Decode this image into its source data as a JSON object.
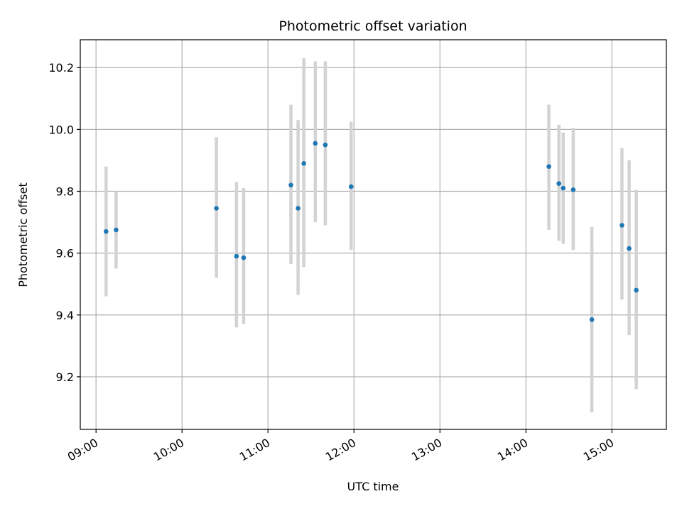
{
  "chart_data": {
    "type": "scatter",
    "title": "Photometric offset variation",
    "xlabel": "UTC time",
    "ylabel": "Photometric offset",
    "xlim": [
      "08:49",
      "15:38"
    ],
    "ylim": [
      9.03,
      10.29
    ],
    "x_ticks": [
      "09:00",
      "10:00",
      "11:00",
      "12:00",
      "13:00",
      "14:00",
      "15:00"
    ],
    "y_ticks": [
      9.2,
      9.4,
      9.6,
      9.8,
      10.0,
      10.2
    ],
    "grid": true,
    "colors": {
      "point": "#1f77b4",
      "errorbar": "#d3d3d3",
      "grid": "#b0b0b0"
    },
    "series": [
      {
        "points": [
          {
            "x": "09:07",
            "y": 9.67,
            "ylow": 9.46,
            "yhigh": 9.88
          },
          {
            "x": "09:14",
            "y": 9.675,
            "ylow": 9.55,
            "yhigh": 9.8
          },
          {
            "x": "10:24",
            "y": 9.745,
            "ylow": 9.52,
            "yhigh": 9.975
          },
          {
            "x": "10:38",
            "y": 9.59,
            "ylow": 9.36,
            "yhigh": 9.83
          },
          {
            "x": "10:43",
            "y": 9.585,
            "ylow": 9.37,
            "yhigh": 9.81
          },
          {
            "x": "11:16",
            "y": 9.82,
            "ylow": 9.565,
            "yhigh": 10.08
          },
          {
            "x": "11:21",
            "y": 9.745,
            "ylow": 9.465,
            "yhigh": 10.03
          },
          {
            "x": "11:25",
            "y": 9.89,
            "ylow": 9.555,
            "yhigh": 10.23
          },
          {
            "x": "11:33",
            "y": 9.955,
            "ylow": 9.7,
            "yhigh": 10.22
          },
          {
            "x": "11:40",
            "y": 9.95,
            "ylow": 9.69,
            "yhigh": 10.22
          },
          {
            "x": "11:58",
            "y": 9.815,
            "ylow": 9.61,
            "yhigh": 10.025
          },
          {
            "x": "14:16",
            "y": 9.88,
            "ylow": 9.675,
            "yhigh": 10.08
          },
          {
            "x": "14:23",
            "y": 9.825,
            "ylow": 9.64,
            "yhigh": 10.015
          },
          {
            "x": "14:26",
            "y": 9.81,
            "ylow": 9.63,
            "yhigh": 9.99
          },
          {
            "x": "14:33",
            "y": 9.805,
            "ylow": 9.61,
            "yhigh": 10.005
          },
          {
            "x": "14:46",
            "y": 9.385,
            "ylow": 9.085,
            "yhigh": 9.685
          },
          {
            "x": "15:07",
            "y": 9.69,
            "ylow": 9.45,
            "yhigh": 9.94
          },
          {
            "x": "15:12",
            "y": 9.615,
            "ylow": 9.335,
            "yhigh": 9.9
          },
          {
            "x": "15:17",
            "y": 9.48,
            "ylow": 9.16,
            "yhigh": 9.805
          }
        ]
      }
    ]
  }
}
